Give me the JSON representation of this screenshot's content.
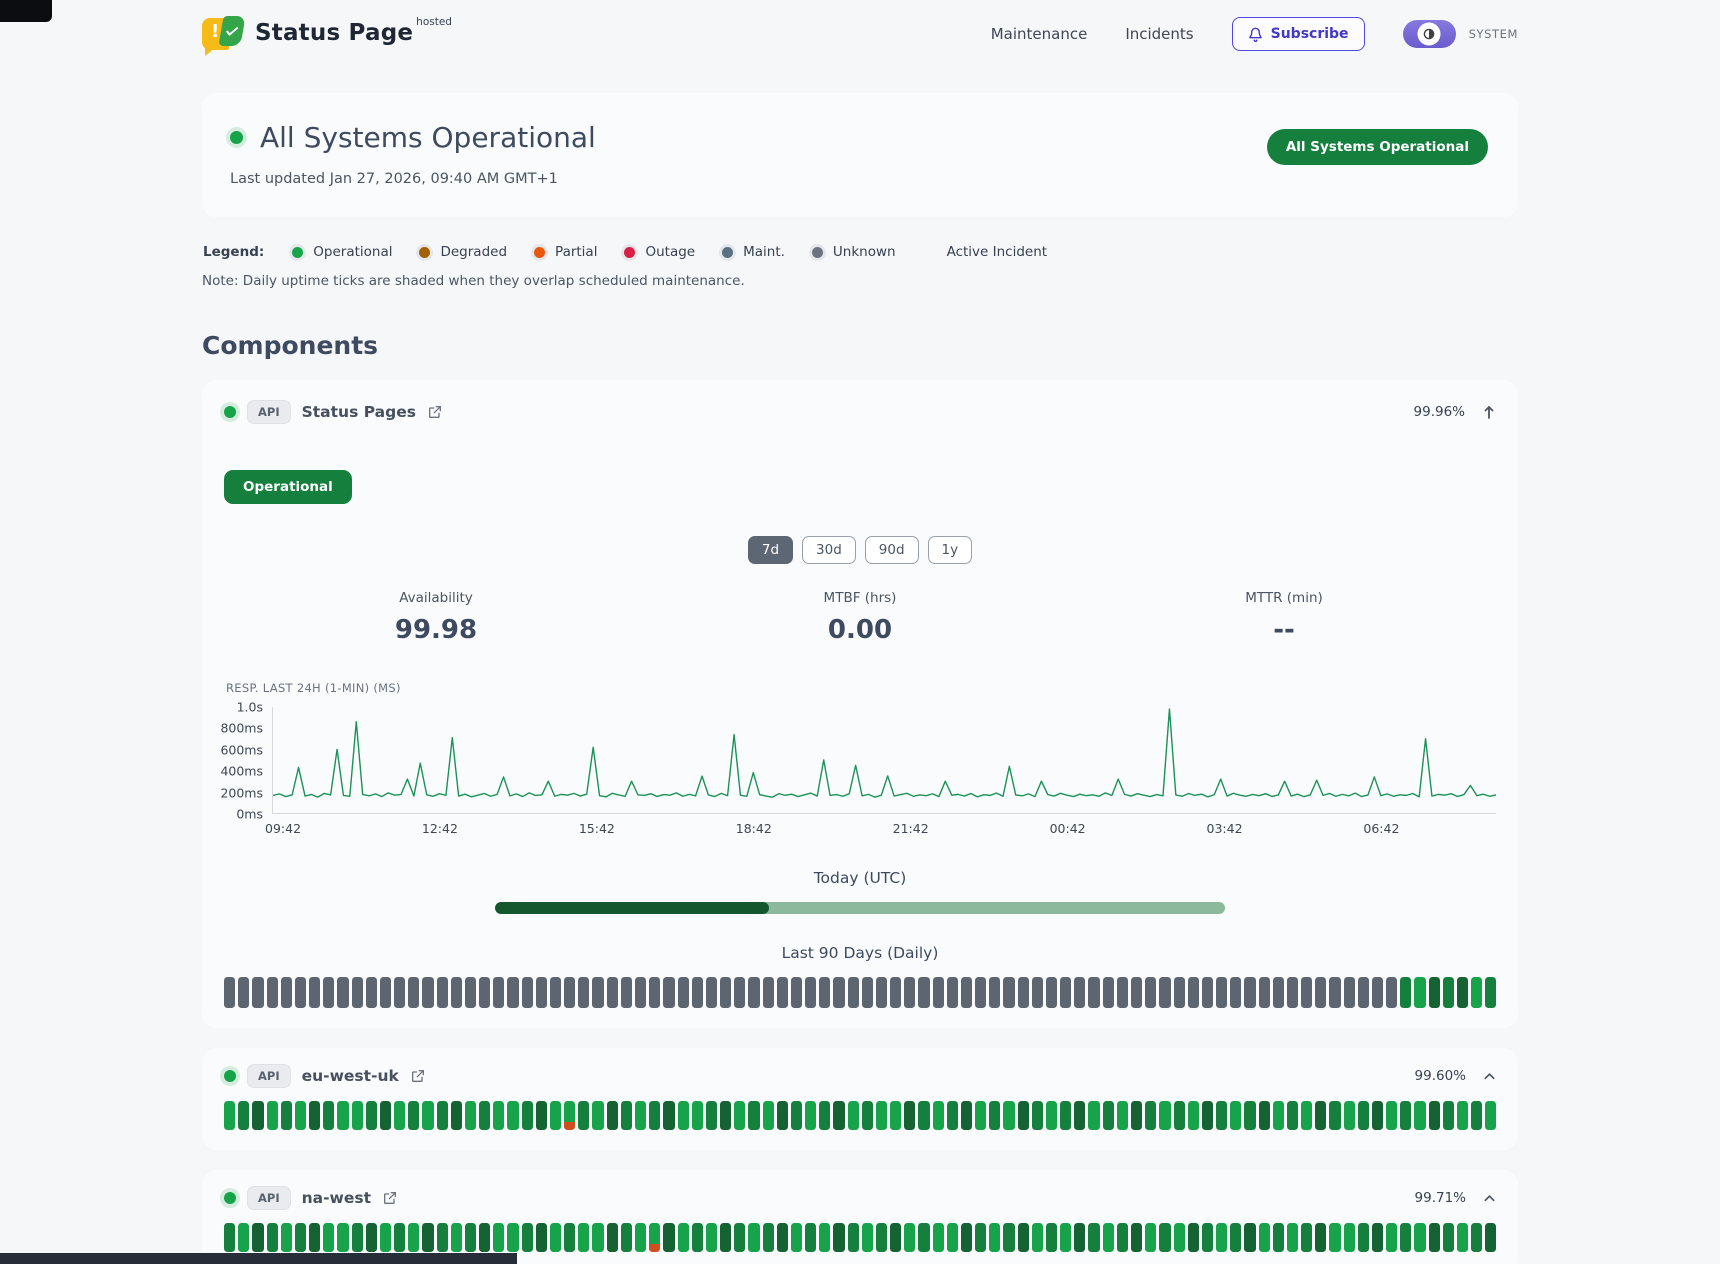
{
  "header": {
    "brand": {
      "name": "Status Page",
      "tag": "hosted"
    },
    "nav": [
      {
        "label": "Maintenance"
      },
      {
        "label": "Incidents"
      }
    ],
    "subscribe_label": "Subscribe",
    "theme_label": "SYSTEM"
  },
  "icons": {
    "subscribe": "bell",
    "theme_toggle": "contrast-half-circle",
    "external_link": "arrow-up-right-from-box",
    "main_collapse": "arrow-up",
    "sub_collapse": "chevron-up",
    "brand": "speech-bubble-exclamation-check"
  },
  "hero": {
    "title": "All Systems Operational",
    "updated": "Last updated Jan 27, 2026, 09:40 AM GMT+1",
    "badge": "All Systems Operational"
  },
  "legend": {
    "label": "Legend:",
    "items": [
      {
        "label": "Operational",
        "color": "#16a34a"
      },
      {
        "label": "Degraded",
        "color": "#a16207"
      },
      {
        "label": "Partial",
        "color": "#ea580c"
      },
      {
        "label": "Outage",
        "color": "#d91f45"
      },
      {
        "label": "Maint.",
        "color": "#5b7083"
      },
      {
        "label": "Unknown",
        "color": "#6b7280"
      }
    ],
    "active_incident_label": "Active Incident",
    "note": "Note: Daily uptime ticks are shaded when they overlap scheduled maintenance."
  },
  "components_title": "Components",
  "component": {
    "badge": "API",
    "name": "Status Pages",
    "uptime": "99.96%",
    "status_label": "Operational",
    "ranges": [
      "7d",
      "30d",
      "90d",
      "1y"
    ],
    "selected_range": "7d",
    "stats": [
      {
        "key": "availability",
        "label": "Availability",
        "value": "99.98"
      },
      {
        "key": "mtbf",
        "label": "MTBF (hrs)",
        "value": "0.00"
      },
      {
        "key": "mttr",
        "label": "MTTR (min)",
        "value": "--"
      }
    ],
    "today_label": "Today (UTC)",
    "today_progress": 0.375,
    "ninety_label": "Last 90 Days (Daily)",
    "ticks": "mmmmmmmmmmmmmmmmmmmmmmmmmmmmmmmmmmmmmmmmmmmmmmmmmmmmmmmmmmmmmmmmmmmmmmmmmmmmmmmmmmmGgdGdgG"
  },
  "subcomponents": [
    {
      "badge": "API",
      "name": "eu-west-uk",
      "uptime": "99.60%",
      "ticks": "gGdgGgdGggGdgGgGdgGggGdgpGgdGgGdggGdgGgdGgGdgGggdGgGdgGgdGgGdgGgdGgGgdGgGdgGgdGgGdgGgdGgGg"
    },
    {
      "badge": "API",
      "name": "na-west",
      "uptime": "99.71%",
      "ticks": "GgdGgGdggGdgGgdGgGdggGdgGggdGgpdgGgdGgGdgGgdGgGdgGggdGgGdgGgdGgGdgGgdGgGdgGgGdggGdgGgdGgGd"
    }
  ],
  "chart_data": {
    "type": "line",
    "title": "RESP. LAST 24H (1-MIN) (MS)",
    "ylabels": [
      "1.0s",
      "800ms",
      "600ms",
      "400ms",
      "200ms",
      "0ms"
    ],
    "ylim": [
      0,
      1000
    ],
    "x_ticks": [
      "09:42",
      "12:42",
      "15:42",
      "18:42",
      "21:42",
      "00:42",
      "03:42",
      "06:42"
    ],
    "grid": false,
    "legend_position": "none",
    "series": [
      {
        "name": "response_ms",
        "color": "#1b9257",
        "values": [
          165,
          180,
          155,
          172,
          430,
          160,
          175,
          150,
          185,
          170,
          600,
          165,
          158,
          860,
          175,
          162,
          180,
          155,
          190,
          168,
          175,
          320,
          160,
          470,
          172,
          158,
          182,
          166,
          710,
          160,
          178,
          152,
          168,
          184,
          158,
          175,
          340,
          162,
          180,
          155,
          190,
          165,
          172,
          300,
          158,
          176,
          168,
          185,
          160,
          178,
          620,
          164,
          152,
          186,
          170,
          158,
          300,
          172,
          165,
          182,
          156,
          174,
          168,
          190,
          158,
          176,
          162,
          348,
          170,
          155,
          185,
          164,
          740,
          168,
          158,
          380,
          174,
          160,
          150,
          182,
          166,
          178,
          155,
          172,
          188,
          160,
          500,
          165,
          174,
          158,
          182,
          450,
          162,
          176,
          150,
          168,
          350,
          160,
          174,
          186,
          158,
          170,
          164,
          180,
          155,
          300,
          168,
          176,
          160,
          184,
          152,
          172,
          166,
          188,
          158,
          440,
          170,
          162,
          180,
          154,
          300,
          174,
          160,
          186,
          168,
          155,
          178,
          164,
          172,
          158,
          190,
          165,
          320,
          176,
          160,
          182,
          168,
          155,
          174,
          162,
          980,
          170,
          158,
          184,
          166,
          178,
          152,
          172,
          320,
          160,
          186,
          168,
          158,
          175,
          164,
          182,
          156,
          170,
          300,
          160,
          178,
          154,
          172,
          310,
          166,
          184,
          158,
          176,
          162,
          188,
          155,
          170,
          340,
          164,
          180,
          158,
          172,
          166,
          184,
          152,
          700,
          160,
          176,
          168,
          182,
          156,
          174,
          260,
          164,
          178,
          158,
          170
        ]
      }
    ]
  }
}
